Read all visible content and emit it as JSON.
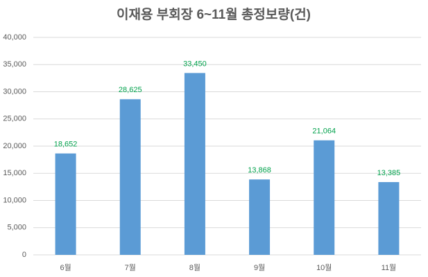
{
  "chart_data": {
    "type": "bar",
    "title": "이재용 부회장 6~11월 총정보량(건)",
    "categories": [
      "6월",
      "7월",
      "8월",
      "9월",
      "10월",
      "11월"
    ],
    "values": [
      18652,
      28625,
      33450,
      13868,
      21064,
      13385
    ],
    "value_labels": [
      "18,652",
      "28,625",
      "33,450",
      "13,868",
      "21,064",
      "13,385"
    ],
    "color": "#5b9bd5",
    "value_label_color": "#00a14b",
    "ylim": [
      0,
      40000
    ],
    "yticks": [
      0,
      {
        "value": 5000,
        "label": "5,000"
      },
      {
        "value": 10000,
        "label": "10,000"
      },
      {
        "value": 15000,
        "label": "15,000"
      },
      {
        "value": 20000,
        "label": "20,000"
      },
      {
        "value": 25000,
        "label": "25,000"
      },
      {
        "value": 30000,
        "label": "30,000"
      },
      {
        "value": 35000,
        "label": "35,000"
      },
      {
        "value": 40000,
        "label": "40,000"
      }
    ],
    "grid": true
  }
}
